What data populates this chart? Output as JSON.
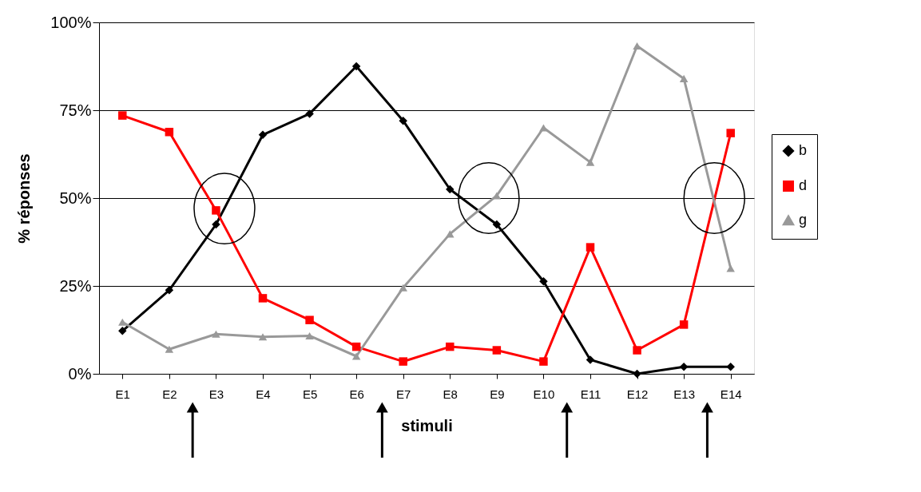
{
  "chart_data": {
    "type": "line",
    "xlabel": "stimuli",
    "ylabel": "% réponses",
    "categories": [
      "E1",
      "E2",
      "E3",
      "E4",
      "E5",
      "E6",
      "E7",
      "E8",
      "E9",
      "E10",
      "E11",
      "E12",
      "E13",
      "E14"
    ],
    "series": [
      {
        "name": "b",
        "color": "#000000",
        "marker": "diamond",
        "values": [
          12.2,
          23.8,
          42.5,
          68,
          74,
          87.5,
          72,
          52.5,
          42.5,
          26.3,
          4,
          0,
          2,
          2
        ]
      },
      {
        "name": "d",
        "color": "#ff0000",
        "marker": "square",
        "values": [
          73.5,
          68.8,
          46.5,
          21.5,
          15.3,
          7.7,
          3.5,
          7.7,
          6.7,
          3.5,
          36,
          6.7,
          14,
          68.5
        ]
      },
      {
        "name": "g",
        "color": "#999999",
        "marker": "triangle",
        "values": [
          14.7,
          7,
          11.3,
          10.5,
          10.8,
          5,
          24.5,
          39.8,
          50.7,
          70,
          60.2,
          93.3,
          84,
          30
        ]
      }
    ],
    "ylim": [
      0,
      100
    ],
    "yticks": [
      {
        "value": 0,
        "label": "0%"
      },
      {
        "value": 25,
        "label": "25%"
      },
      {
        "value": 50,
        "label": "50%"
      },
      {
        "value": 75,
        "label": "75%"
      },
      {
        "value": 100,
        "label": "100%"
      }
    ],
    "grid": "y",
    "legend": "right",
    "line_style": "solid"
  }
}
